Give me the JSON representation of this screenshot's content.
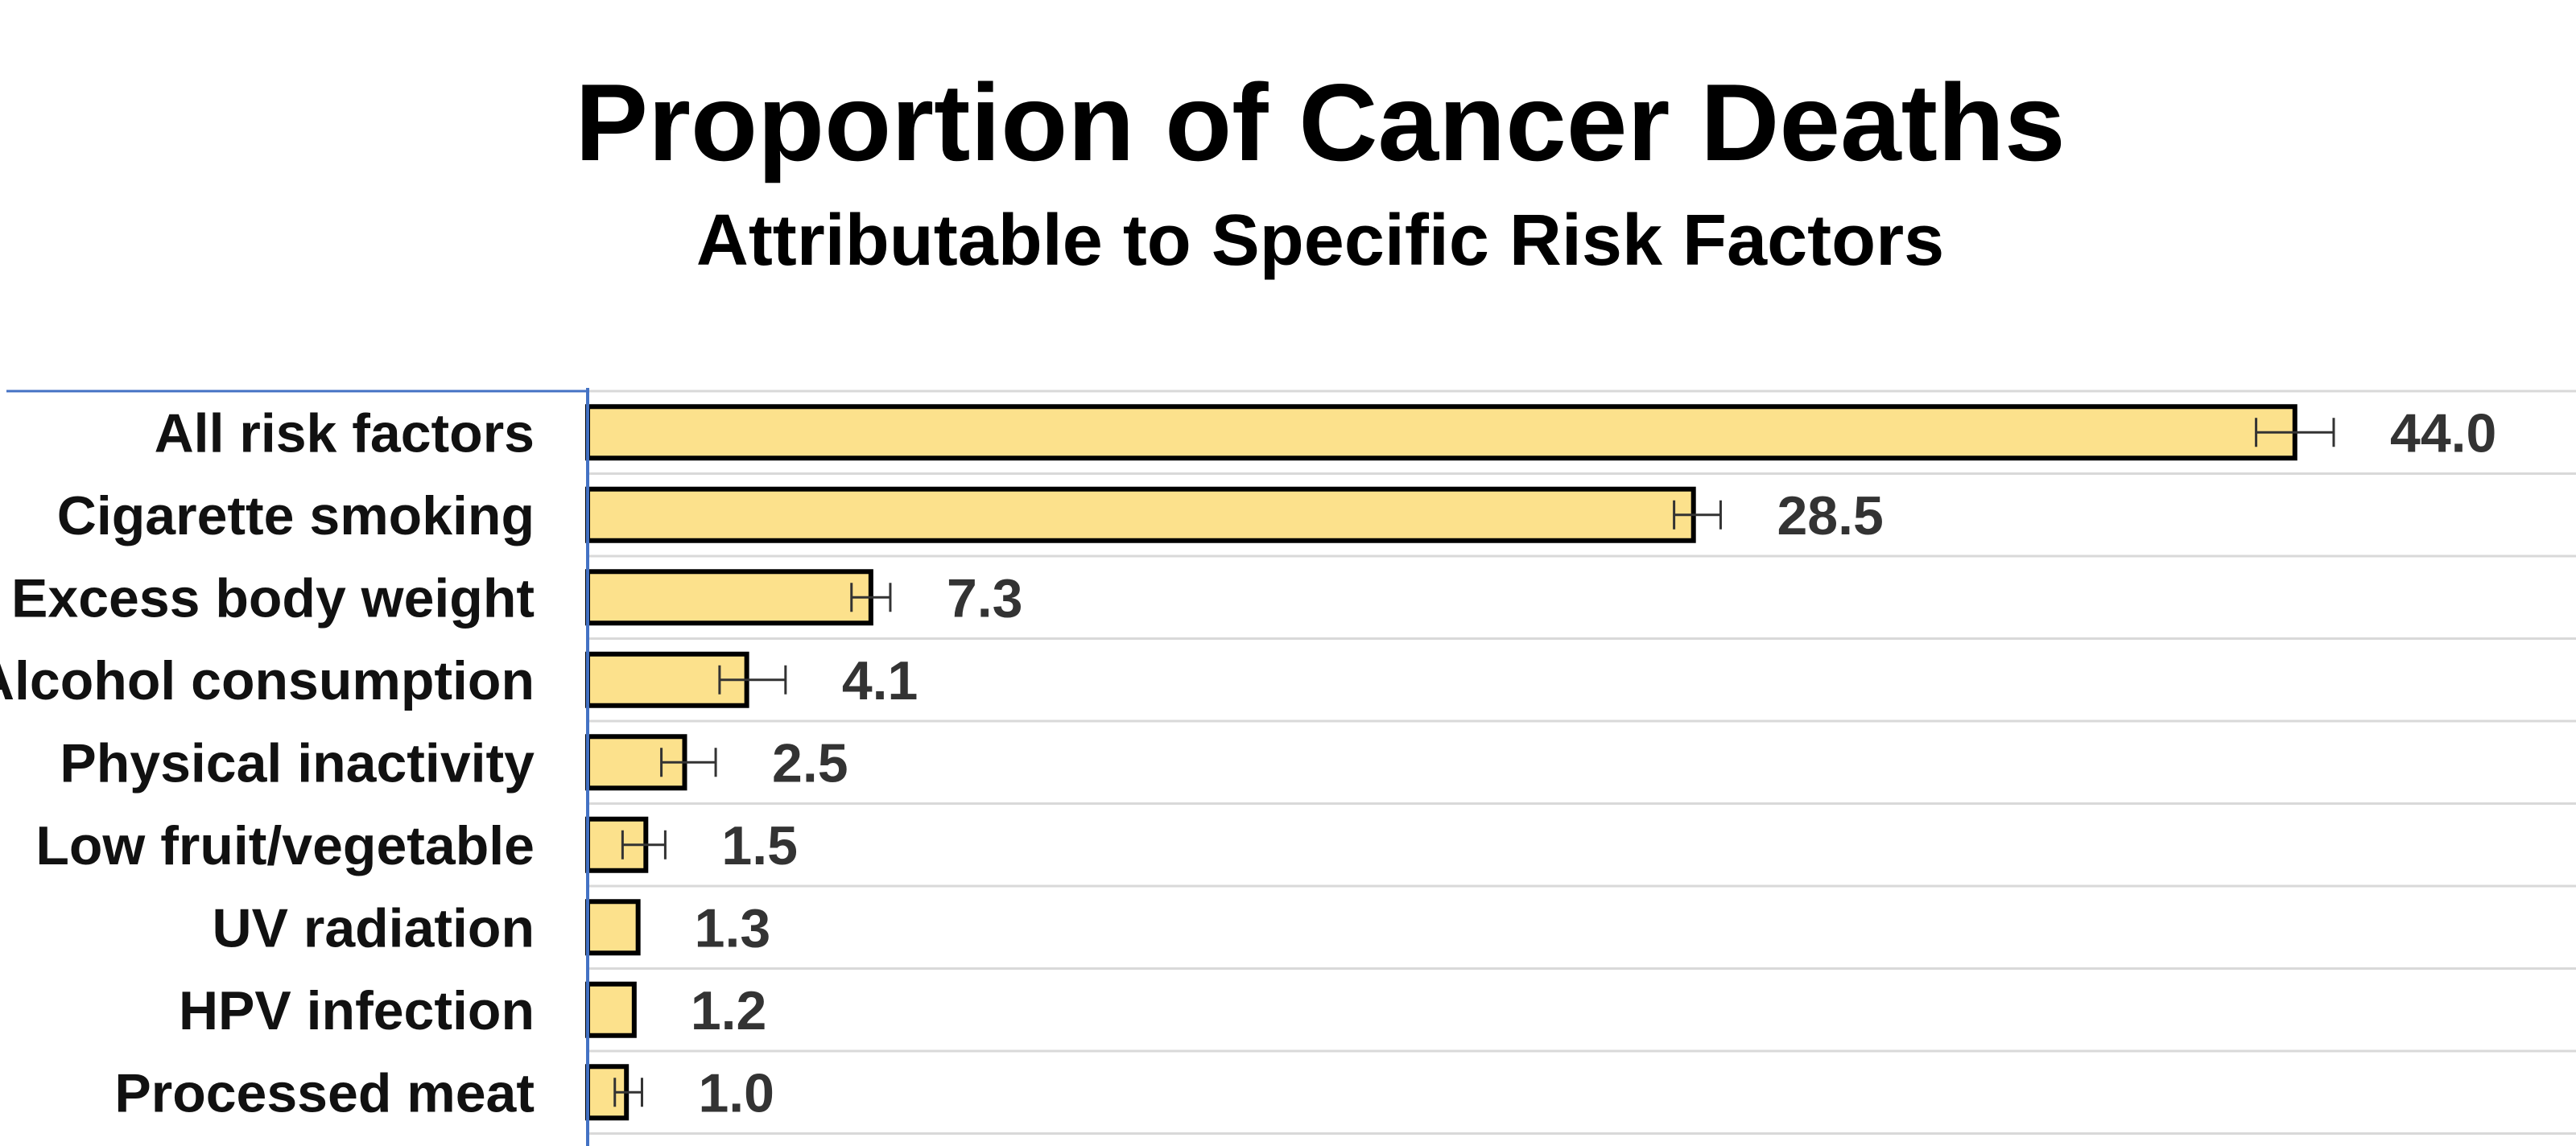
{
  "chart_data": {
    "type": "bar",
    "orientation": "horizontal",
    "title": "Proportion of Cancer Deaths",
    "subtitle": "Attributable to Specific Risk Factors",
    "xlabel": "",
    "ylabel": "",
    "categories": [
      "All risk factors",
      "Cigarette smoking",
      "Excess body weight",
      "Alcohol consumption",
      "Physical inactivity",
      "Low fruit/vegetable",
      "UV radiation",
      "HPV infection",
      "Processed meat"
    ],
    "values": [
      44.0,
      28.5,
      7.3,
      4.1,
      2.5,
      1.5,
      1.3,
      1.2,
      1.0
    ],
    "value_labels": [
      "44.0",
      "28.5",
      "7.3",
      "4.1",
      "2.5",
      "1.5",
      "1.3",
      "1.2",
      "1.0"
    ],
    "error_bars": [
      [
        43.0,
        45.0
      ],
      [
        28.0,
        29.2
      ],
      [
        6.8,
        7.8
      ],
      [
        3.4,
        5.1
      ],
      [
        1.9,
        3.3
      ],
      [
        0.9,
        2.0
      ],
      null,
      null,
      [
        0.7,
        1.4
      ]
    ],
    "grid": true,
    "legend": "none",
    "colors": {
      "bar_fill": "#FCE18C",
      "bar_stroke": "#000000",
      "grid": "#D9D9D9",
      "axis": "#4472C4"
    }
  }
}
